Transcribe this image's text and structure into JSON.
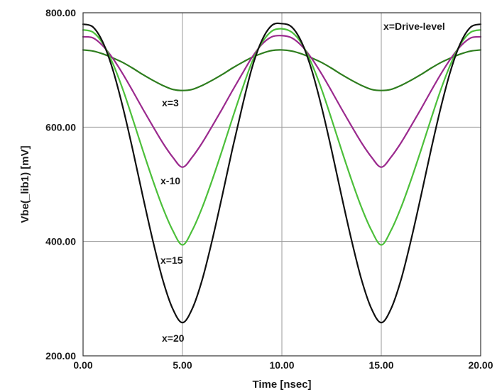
{
  "chart_data": {
    "type": "line",
    "title": "",
    "xlabel": "Time [nsec]",
    "ylabel": "Vbe(_lib1) [mV]",
    "xlim": [
      0,
      20
    ],
    "ylim": [
      200,
      800
    ],
    "grid": true,
    "x_ticks": [
      "0.00",
      "5.00",
      "10.00",
      "15.00",
      "20.00"
    ],
    "y_ticks": [
      "200.00",
      "400.00",
      "600.00",
      "800.00"
    ],
    "legend_note": "x=Drive-level",
    "x": [
      0,
      0.5,
      1,
      1.5,
      2,
      2.5,
      3,
      3.5,
      4,
      4.5,
      5,
      5.5,
      6,
      6.5,
      7,
      7.5,
      8,
      8.5,
      9,
      9.5,
      10,
      10.5,
      11,
      11.5,
      12,
      12.5,
      13,
      13.5,
      14,
      14.5,
      15,
      15.5,
      16,
      16.5,
      17,
      17.5,
      18,
      18.5,
      19,
      19.5,
      20
    ],
    "series": [
      {
        "name": "x=3",
        "color": "#2e7d1e",
        "values": [
          735,
          733,
          728,
          721,
          713,
          703,
          692,
          682,
          673,
          666,
          664,
          666,
          673,
          682,
          692,
          703,
          713,
          722,
          729,
          734,
          735,
          733,
          728,
          721,
          713,
          703,
          692,
          682,
          673,
          666,
          664,
          666,
          673,
          682,
          692,
          703,
          713,
          721,
          728,
          733,
          735
        ]
      },
      {
        "name": "x-10",
        "color": "#9b2a8e",
        "values": [
          758,
          756,
          742,
          720,
          693,
          663,
          632,
          602,
          573,
          548,
          530,
          548,
          573,
          602,
          632,
          663,
          693,
          722,
          745,
          758,
          760,
          756,
          742,
          720,
          693,
          663,
          632,
          602,
          573,
          548,
          530,
          548,
          573,
          602,
          632,
          663,
          693,
          720,
          742,
          756,
          758
        ]
      },
      {
        "name": "x=15",
        "color": "#4cbf3a",
        "values": [
          770,
          766,
          746,
          711,
          666,
          614,
          560,
          508,
          460,
          420,
          394,
          420,
          460,
          508,
          560,
          614,
          666,
          714,
          748,
          768,
          772,
          766,
          746,
          711,
          666,
          614,
          560,
          508,
          460,
          420,
          394,
          420,
          460,
          508,
          560,
          614,
          666,
          711,
          746,
          766,
          770
        ]
      },
      {
        "name": "x=20",
        "color": "#111111",
        "values": [
          780,
          775,
          748,
          700,
          635,
          560,
          480,
          403,
          334,
          283,
          258,
          283,
          334,
          403,
          480,
          560,
          635,
          704,
          752,
          778,
          781,
          775,
          748,
          700,
          635,
          560,
          480,
          403,
          334,
          283,
          258,
          283,
          334,
          403,
          480,
          560,
          635,
          700,
          748,
          775,
          780
        ]
      }
    ],
    "annotations": [
      "x=3",
      "x-10",
      "x=15",
      "x=20"
    ]
  }
}
